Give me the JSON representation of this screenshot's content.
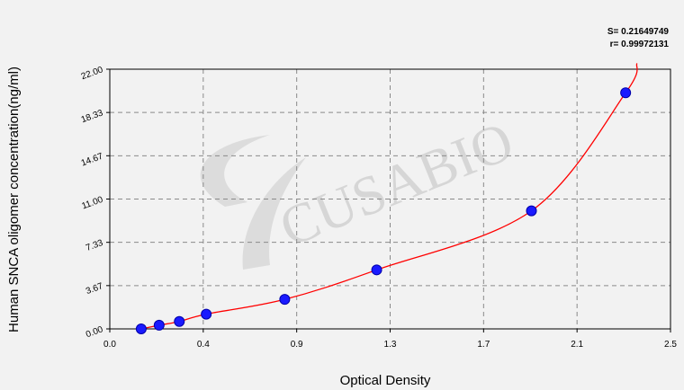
{
  "chart_data": {
    "type": "scatter",
    "xlabel": "Optical Density",
    "ylabel": "Human SNCA oligomer concentration(ng/ml)",
    "xlim": [
      0.0,
      2.5
    ],
    "ylim": [
      0.0,
      22.0
    ],
    "x_ticks": [
      "0.0",
      "0.4",
      "0.9",
      "1.3",
      "1.7",
      "2.1",
      "2.5"
    ],
    "y_ticks": [
      "0.00",
      "3.67",
      "7.33",
      "11.00",
      "14.67",
      "18.33",
      "22.00"
    ],
    "grid": true,
    "points": [
      {
        "x": 0.14,
        "y": 0.0
      },
      {
        "x": 0.22,
        "y": 0.31
      },
      {
        "x": 0.31,
        "y": 0.63
      },
      {
        "x": 0.43,
        "y": 1.25
      },
      {
        "x": 0.78,
        "y": 2.5
      },
      {
        "x": 1.19,
        "y": 5.0
      },
      {
        "x": 1.88,
        "y": 10.0
      },
      {
        "x": 2.3,
        "y": 20.0
      }
    ],
    "fit_curve_color": "#ff0000",
    "point_color": "#1a1aff",
    "stats": [
      "S= 0.21649749",
      "r= 0.99972131"
    ],
    "watermark": "CUSABIO"
  }
}
